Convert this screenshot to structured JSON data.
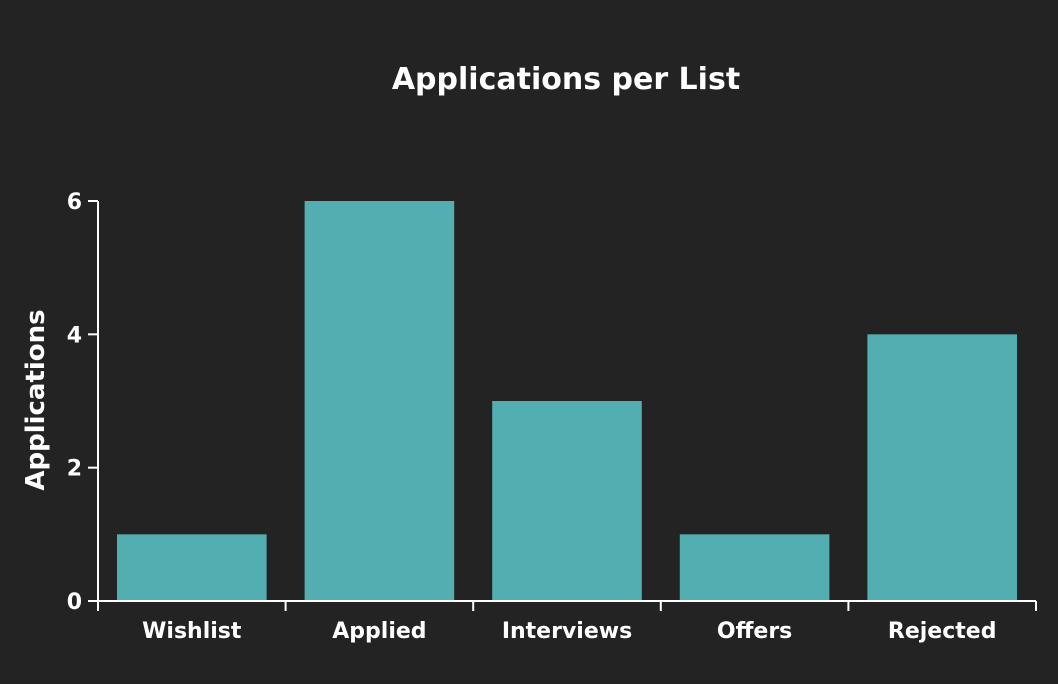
{
  "colors": {
    "background": "#232323",
    "bar": "#52aeb0",
    "text": "#ffffff",
    "axis": "#ffffff"
  },
  "chart_data": {
    "type": "bar",
    "title": "Applications per List",
    "xlabel": "",
    "ylabel": "Applications",
    "categories": [
      "Wishlist",
      "Applied",
      "Interviews",
      "Offers",
      "Rejected"
    ],
    "values": [
      1,
      6,
      3,
      1,
      4
    ],
    "ylim": [
      0,
      6
    ],
    "yticks": [
      "0",
      "2",
      "4",
      "6"
    ],
    "grid": false,
    "legend": "none"
  }
}
